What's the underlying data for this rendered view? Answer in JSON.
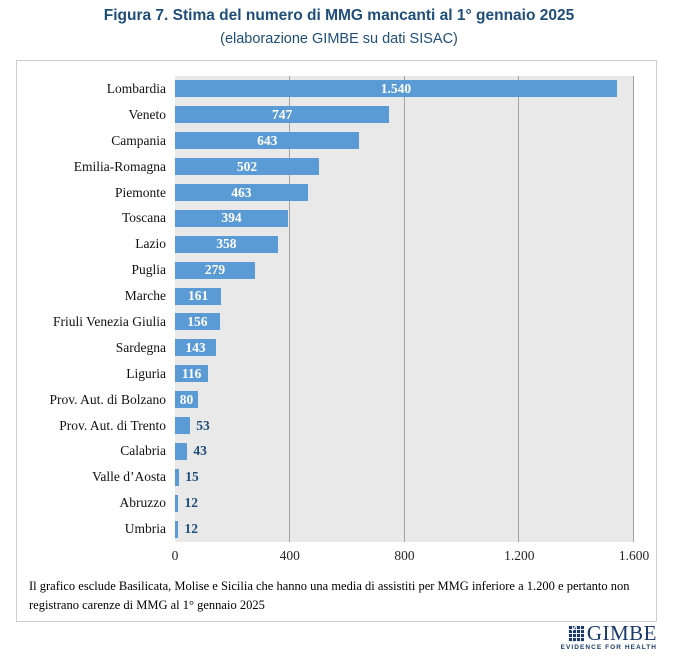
{
  "title": "Figura 7. Stima del numero di MMG mancanti al 1° gennaio 2025",
  "subtitle": "(elaborazione GIMBE su dati SISAC)",
  "chart_data": {
    "type": "bar",
    "orientation": "horizontal",
    "title": "Figura 7. Stima del numero di MMG mancanti al 1° gennaio 2025",
    "subtitle": "(elaborazione GIMBE su dati SISAC)",
    "categories": [
      "Lombardia",
      "Veneto",
      "Campania",
      "Emilia-Romagna",
      "Piemonte",
      "Toscana",
      "Lazio",
      "Puglia",
      "Marche",
      "Friuli Venezia Giulia",
      "Sardegna",
      "Liguria",
      "Prov. Aut. di Bolzano",
      "Prov. Aut. di Trento",
      "Calabria",
      "Valle d’Aosta",
      "Abruzzo",
      "Umbria"
    ],
    "values": [
      1540,
      747,
      643,
      502,
      463,
      394,
      358,
      279,
      161,
      156,
      143,
      116,
      80,
      53,
      43,
      15,
      12,
      12
    ],
    "value_labels": [
      "1.540",
      "747",
      "643",
      "502",
      "463",
      "394",
      "358",
      "279",
      "161",
      "156",
      "143",
      "116",
      "80",
      "53",
      "43",
      "15",
      "12",
      "12"
    ],
    "xlabel": "",
    "ylabel": "",
    "xlim": [
      0,
      1600
    ],
    "x_ticks": [
      "0",
      "400",
      "800",
      "1.200",
      "1.600"
    ],
    "x_tick_values": [
      0,
      400,
      800,
      1200,
      1600
    ],
    "grid": true,
    "legend": false,
    "inside_label_min": 80
  },
  "footnote": "Il grafico esclude Basilicata, Molise e Sicilia che hanno una media di assistiti per MMG inferiore a 1.200 e pertanto non registrano carenze di MMG al 1° gennaio 2025",
  "logo": {
    "name": "GIMBE",
    "tagline": "EVIDENCE FOR HEALTH",
    "icon": "checkered-mosaic-with-check",
    "check_glyph": "✓"
  },
  "colors": {
    "title_navy": "#1F4E79",
    "bar_blue": "#5B9BD5",
    "value_inside_white": "#FFFFFF",
    "value_outside_navy": "#1F4E79",
    "plot_background": "#E9E9E9",
    "gridline_gray": "#A3A3A3",
    "box_border_gray": "#CFCFCF",
    "logo_navy": "#1B3A6B"
  }
}
